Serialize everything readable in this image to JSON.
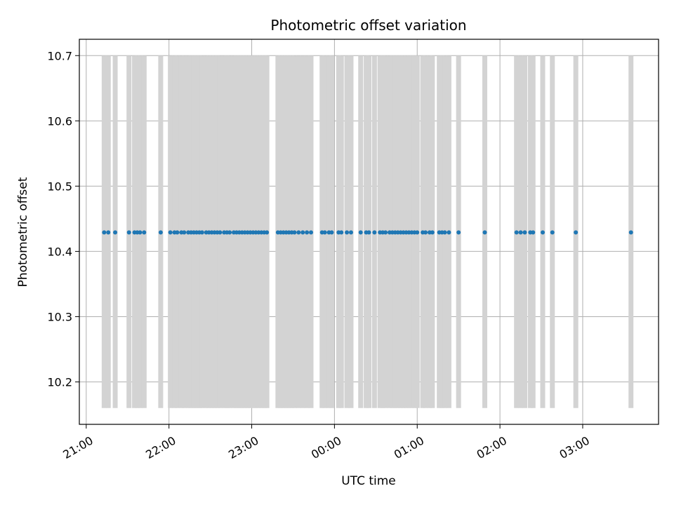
{
  "chart_data": {
    "type": "scatter",
    "title": "Photometric offset variation",
    "xlabel": "UTC time",
    "ylabel": "Photometric offset",
    "x_axis": "time",
    "xlim": [
      "20:55",
      "03:55"
    ],
    "ylim": [
      10.135,
      10.725
    ],
    "x_ticks": [
      "21:00",
      "22:00",
      "23:00",
      "00:00",
      "01:00",
      "02:00",
      "03:00"
    ],
    "y_ticks": [
      10.2,
      10.3,
      10.4,
      10.5,
      10.6,
      10.7
    ],
    "grid": true,
    "point_color": "#1f77b4",
    "band_color": "#d3d3d3",
    "band_range": [
      10.16,
      10.7
    ],
    "offset_value": 10.429,
    "times": [
      "21:13",
      "21:16",
      "21:21",
      "21:31",
      "21:35",
      "21:37",
      "21:39",
      "21:42",
      "21:54",
      "22:01",
      "22:04",
      "22:06",
      "22:09",
      "22:11",
      "22:14",
      "22:16",
      "22:18",
      "22:20",
      "22:22",
      "22:24",
      "22:27",
      "22:29",
      "22:31",
      "22:33",
      "22:35",
      "22:37",
      "22:40",
      "22:42",
      "22:44",
      "22:47",
      "22:49",
      "22:51",
      "22:53",
      "22:55",
      "22:57",
      "22:59",
      "23:01",
      "23:03",
      "23:05",
      "23:07",
      "23:09",
      "23:11",
      "23:19",
      "23:21",
      "23:23",
      "23:25",
      "23:27",
      "23:29",
      "23:31",
      "23:34",
      "23:37",
      "23:40",
      "23:43",
      "23:51",
      "23:53",
      "23:56",
      "23:58",
      "00:03",
      "00:05",
      "00:09",
      "00:12",
      "00:19",
      "00:23",
      "00:25",
      "00:29",
      "00:33",
      "00:35",
      "00:37",
      "00:40",
      "00:42",
      "00:44",
      "00:46",
      "00:48",
      "00:50",
      "00:52",
      "00:54",
      "00:56",
      "00:58",
      "01:00",
      "01:04",
      "01:06",
      "01:09",
      "01:11",
      "01:16",
      "01:18",
      "01:20",
      "01:23",
      "01:30",
      "01:49",
      "02:12",
      "02:15",
      "02:18",
      "02:22",
      "02:24",
      "02:31",
      "02:38",
      "02:55",
      "03:35"
    ]
  }
}
